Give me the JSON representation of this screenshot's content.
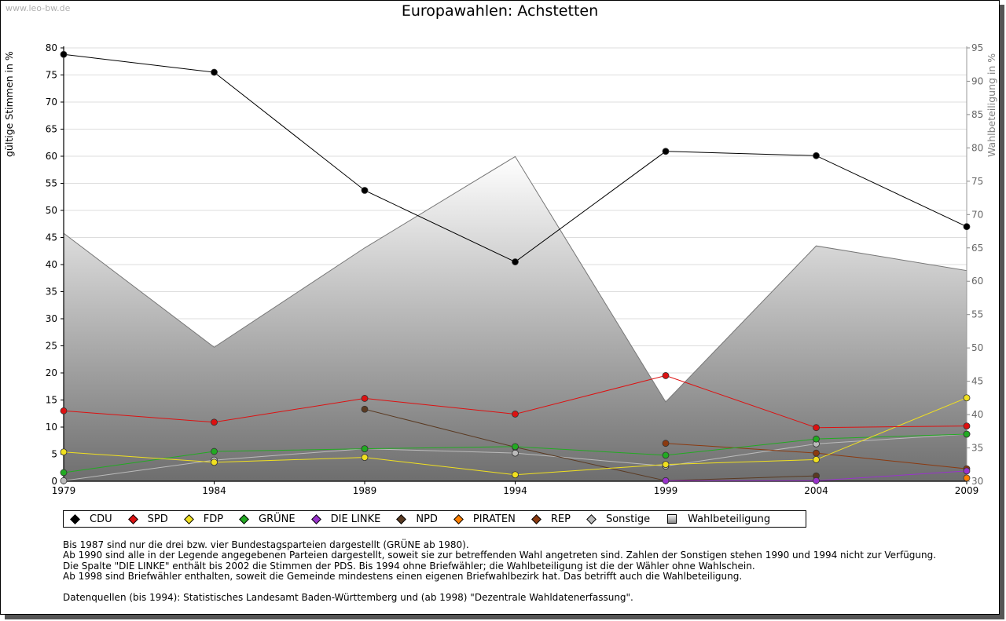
{
  "watermark": "www.leo-bw.de",
  "title": "Europawahlen: Achstetten",
  "ylabel_left": "gültige Stimmen in %",
  "ylabel_right": "Wahlbeteiligung in %",
  "legend": [
    {
      "name": "CDU",
      "color": "#000000",
      "shape": "diamond"
    },
    {
      "name": "SPD",
      "color": "#dd1111",
      "shape": "diamond"
    },
    {
      "name": "FDP",
      "color": "#f0e020",
      "shape": "diamond"
    },
    {
      "name": "GRÜNE",
      "color": "#22aa22",
      "shape": "diamond"
    },
    {
      "name": "DIE LINKE",
      "color": "#9933cc",
      "shape": "diamond"
    },
    {
      "name": "NPD",
      "color": "#5a3a22",
      "shape": "diamond"
    },
    {
      "name": "PIRATEN",
      "color": "#ff7f00",
      "shape": "diamond"
    },
    {
      "name": "REP",
      "color": "#8b3a10",
      "shape": "diamond"
    },
    {
      "name": "Sonstige",
      "color": "#bbbbbb",
      "shape": "diamond"
    },
    {
      "name": "Wahlbeteiligung",
      "color": "#aaaaaa",
      "shape": "square"
    }
  ],
  "notes": [
    "Bis 1987 sind nur die drei bzw. vier Bundestagsparteien dargestellt (GRÜNE ab 1980).",
    "Ab 1990 sind alle in der Legende angegebenen Parteien dargestellt, soweit sie zur betreffenden Wahl angetreten sind. Zahlen der Sonstigen stehen 1990 und 1994 nicht zur Verfügung.",
    "Die Spalte \"DIE LINKE\" enthält bis 2002 die Stimmen der PDS. Bis 1994 ohne Briefwähler; die Wahlbeteiligung ist die der Wähler ohne Wahlschein.",
    "Ab 1998 sind Briefwähler enthalten, soweit die Gemeinde mindestens einen eigenen Briefwahlbezirk hat. Das betrifft auch die Wahlbeteiligung."
  ],
  "source": "Datenquellen (bis 1994): Statistisches Landesamt Baden-Württemberg und (ab 1998) \"Dezentrale Wahldatenerfassung\".",
  "chart_data": {
    "type": "line",
    "title": "Europawahlen: Achstetten",
    "x": [
      1979,
      1984,
      1989,
      1994,
      1999,
      2004,
      2009
    ],
    "xlabel": "",
    "ylabel": "gültige Stimmen in %",
    "ylim": [
      0,
      80
    ],
    "yticks": [
      0,
      5,
      10,
      15,
      20,
      25,
      30,
      35,
      40,
      45,
      50,
      55,
      60,
      65,
      70,
      75,
      80
    ],
    "y2label": "Wahlbeteiligung in %",
    "y2lim": [
      30,
      95
    ],
    "y2ticks": [
      30,
      35,
      40,
      45,
      50,
      55,
      60,
      65,
      70,
      75,
      80,
      85,
      90,
      95
    ],
    "grid": true,
    "series": [
      {
        "name": "CDU",
        "color": "#000000",
        "values": [
          78.8,
          75.5,
          53.7,
          40.5,
          60.9,
          60.1,
          47.0
        ]
      },
      {
        "name": "SPD",
        "color": "#dd1111",
        "values": [
          13.0,
          10.9,
          15.3,
          12.4,
          19.5,
          9.9,
          10.2
        ]
      },
      {
        "name": "FDP",
        "color": "#f0e020",
        "values": [
          5.4,
          3.5,
          4.4,
          1.2,
          3.1,
          4.0,
          15.4
        ]
      },
      {
        "name": "GRÜNE",
        "color": "#22aa22",
        "values": [
          1.6,
          5.5,
          6.0,
          6.4,
          4.8,
          7.8,
          8.7
        ]
      },
      {
        "name": "DIE LINKE",
        "color": "#9933cc",
        "values": [
          null,
          null,
          null,
          null,
          0.1,
          0.1,
          1.9
        ]
      },
      {
        "name": "NPD",
        "color": "#5a3a22",
        "values": [
          null,
          null,
          13.3,
          6.3,
          0.1,
          1.0,
          null
        ]
      },
      {
        "name": "PIRATEN",
        "color": "#ff7f00",
        "values": [
          null,
          null,
          null,
          null,
          null,
          null,
          0.6
        ]
      },
      {
        "name": "REP",
        "color": "#8b3a10",
        "values": [
          null,
          null,
          null,
          null,
          7.0,
          5.2,
          2.3
        ]
      },
      {
        "name": "Sonstige",
        "color": "#bbbbbb",
        "values": [
          0.1,
          3.9,
          6.0,
          5.2,
          2.8,
          6.9,
          8.7
        ]
      }
    ],
    "turnout": {
      "name": "Wahlbeteiligung",
      "axis": "right",
      "type": "area",
      "values": [
        67.2,
        50.1,
        65.0,
        78.7,
        41.9,
        65.3,
        61.6
      ]
    },
    "legend_position": "bottom"
  }
}
